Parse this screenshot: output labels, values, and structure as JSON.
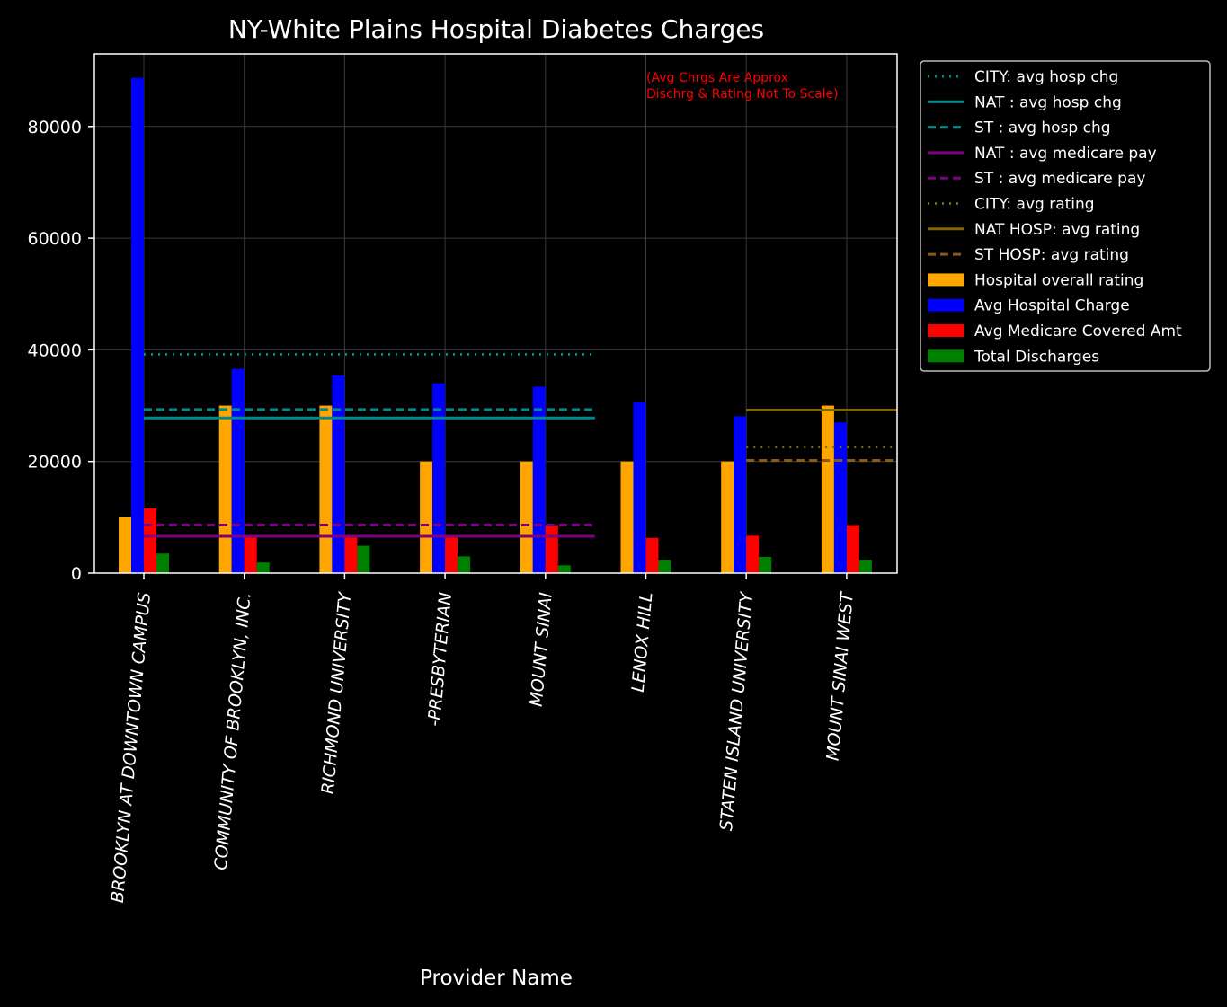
{
  "chart_data": {
    "type": "bar",
    "title": "NY-White Plains Hospital Diabetes Charges",
    "xlabel": "Provider Name",
    "ylabel": "",
    "ylim": [
      0,
      93000
    ],
    "yticks": [
      0,
      20000,
      40000,
      60000,
      80000
    ],
    "grid": true,
    "legend_position": "outside-right-top",
    "annotation": [
      "(Avg Chrgs Are Approx",
      " Dischrg & Rating Not To Scale)"
    ],
    "categories": [
      "BROOKLYN    AT DOWNTOWN CAMPUS",
      "COMMUNITY  OF BROOKLYN, INC.",
      "RICHMOND UNIVERSITY",
      "-PRESBYTERIAN",
      "MOUNT SINAI",
      "LENOX HILL",
      "STATEN ISLAND UNIVERSITY",
      "MOUNT SINAI WEST"
    ],
    "series": [
      {
        "name": "Hospital overall rating",
        "color": "#ffa500",
        "values": [
          10000,
          30000,
          30000,
          20000,
          20000,
          20000,
          20000,
          30000
        ]
      },
      {
        "name": "Avg Hospital Charge",
        "color": "#0000ff",
        "values": [
          88700,
          36600,
          35400,
          34000,
          33400,
          30600,
          28100,
          27000
        ]
      },
      {
        "name": "Avg Medicare Covered Amt",
        "color": "#ff0000",
        "values": [
          11600,
          6500,
          6500,
          6700,
          8600,
          6300,
          6700,
          8600
        ]
      },
      {
        "name": "Total Discharges",
        "color": "#008000",
        "values": [
          3500,
          1900,
          4900,
          3000,
          1400,
          2400,
          2900,
          2400
        ]
      }
    ],
    "reference_lines": [
      {
        "name": "CITY: avg hosp chg",
        "color": "#008b8b",
        "dash": "dotted",
        "value": 39200,
        "from_category": 0,
        "to_category": 4
      },
      {
        "name": "NAT : avg hosp chg",
        "color": "#008b8b",
        "dash": "solid",
        "value": 27800,
        "from_category": 0,
        "to_category": 4
      },
      {
        "name": "ST   : avg hosp chg",
        "color": "#008b8b",
        "dash": "dashed",
        "value": 29300,
        "from_category": 0,
        "to_category": 4
      },
      {
        "name": "NAT : avg medicare pay",
        "color": "#800080",
        "dash": "solid",
        "value": 6600,
        "from_category": 0,
        "to_category": 4
      },
      {
        "name": "ST   : avg medicare pay",
        "color": "#800080",
        "dash": "dashed",
        "value": 8600,
        "from_category": 0,
        "to_category": 4
      },
      {
        "name": "CITY: avg rating",
        "color": "#6b6b1a",
        "dash": "dotted",
        "value": 22600,
        "from_category": 6,
        "to_category": 7
      },
      {
        "name": "NAT HOSP: avg rating",
        "color": "#806600",
        "dash": "solid",
        "value": 29200,
        "from_category": 6,
        "to_category": 7
      },
      {
        "name": "ST  HOSP: avg rating",
        "color": "#8b5a14",
        "dash": "dashed",
        "value": 20200,
        "from_category": 6,
        "to_category": 7
      }
    ]
  }
}
